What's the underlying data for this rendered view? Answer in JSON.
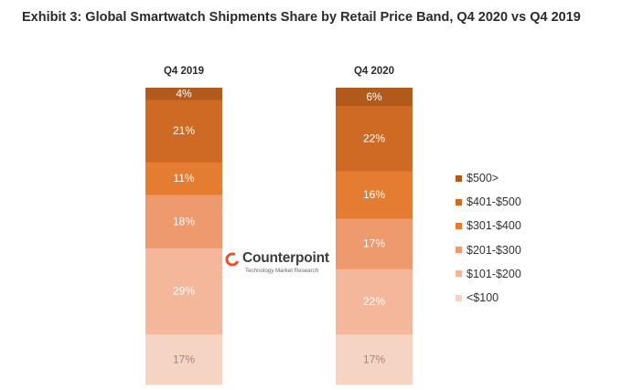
{
  "title": "Exhibit 3: Global Smartwatch Shipments Share by Retail Price Band, Q4 2020 vs Q4 2019",
  "chart_data": {
    "type": "bar",
    "stacked": true,
    "percent": true,
    "categories": [
      "Q4 2019",
      "Q4 2020"
    ],
    "series": [
      {
        "name": "<$100",
        "values": [
          17,
          17
        ],
        "labels": [
          "17%",
          "17%"
        ],
        "color": "#f6d4c4"
      },
      {
        "name": "$101-$200",
        "values": [
          29,
          22
        ],
        "labels": [
          "29%",
          "22%"
        ],
        "color": "#f4b79b"
      },
      {
        "name": "$201-$300",
        "values": [
          18,
          17
        ],
        "labels": [
          "18%",
          "17%"
        ],
        "color": "#ee9a6e"
      },
      {
        "name": "$301-$400",
        "values": [
          11,
          16
        ],
        "labels": [
          "11%",
          "16%"
        ],
        "color": "#e47c31"
      },
      {
        "name": "$401-$500",
        "values": [
          21,
          22
        ],
        "labels": [
          "21%",
          "22%"
        ],
        "color": "#cf6a25"
      },
      {
        "name": "$500>",
        "values": [
          4,
          6
        ],
        "labels": [
          "4%",
          "6%"
        ],
        "color": "#b2591c"
      }
    ],
    "legend_position": "right",
    "grid": false,
    "ylim": [
      0,
      100
    ]
  },
  "logo": {
    "name": "Counterpoint",
    "tagline": "Technology Market Research",
    "color": "#e4502a"
  }
}
